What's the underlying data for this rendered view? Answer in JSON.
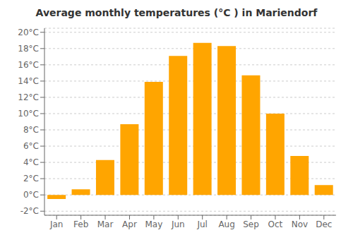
{
  "chart_data": {
    "type": "bar",
    "title": "Average monthly temperatures (°C ) in Mariendorf",
    "categories": [
      "Jan",
      "Feb",
      "Mar",
      "Apr",
      "May",
      "Jun",
      "Jul",
      "Aug",
      "Sep",
      "Oct",
      "Nov",
      "Dec"
    ],
    "values": [
      -0.5,
      0.7,
      4.3,
      8.7,
      13.9,
      17.1,
      18.7,
      18.3,
      14.7,
      10.0,
      4.8,
      1.2
    ],
    "color": "#FFA500",
    "ylim": [
      -2.5,
      20.5
    ],
    "yticks": [
      {
        "value": -2,
        "label": "-2°C"
      },
      {
        "value": 0,
        "label": "0°C"
      },
      {
        "value": 2,
        "label": "2°C"
      },
      {
        "value": 4,
        "label": "4°C"
      },
      {
        "value": 6,
        "label": "6°C"
      },
      {
        "value": 8,
        "label": "8°C"
      },
      {
        "value": 10,
        "label": "10°C"
      },
      {
        "value": 12,
        "label": "12°C"
      },
      {
        "value": 14,
        "label": "14°C"
      },
      {
        "value": 16,
        "label": "16°C"
      },
      {
        "value": 18,
        "label": "18°C"
      },
      {
        "value": 20,
        "label": "20°C"
      }
    ],
    "grid": true
  }
}
